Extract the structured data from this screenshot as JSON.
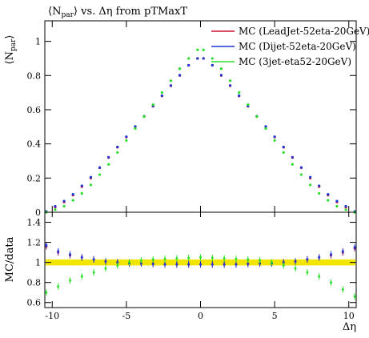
{
  "title": "⟨N_par⟩ vs. Δη from pTMaxT",
  "title_parts": {
    "pre": "⟨N",
    "sub": "par",
    "post": "⟩ vs. Δη from pTMaxT"
  },
  "y_axis_top": {
    "pre": "⟨N",
    "sub": "par",
    "post": "⟩"
  },
  "y_axis_bottom_label": "MC/data",
  "x_axis_label": "Δη",
  "colors": {
    "leadjet": "#d01030",
    "dijet": "#1f35d6",
    "threejet": "#2adf2a",
    "ratio_band": "#f2e600"
  },
  "chart_data": [
    {
      "type": "scatter",
      "panel": "main",
      "xlim": [
        -10.5,
        10.5
      ],
      "ylim": [
        0,
        1.12
      ],
      "x_ticks": [
        -10,
        -5,
        0,
        5,
        10
      ],
      "y_ticks": [
        0,
        0.2,
        0.4,
        0.6,
        0.8,
        1
      ],
      "y_tick_labels": [
        "0",
        "0.2",
        "0.4",
        "0.6",
        "0.8",
        "1"
      ],
      "grid": false,
      "legend_position": "top-right",
      "series": [
        {
          "name": "MC (LeadJet-52eta-20GeV)",
          "color_key": "leadjet",
          "x": [
            -10.4,
            -9.8,
            -9.2,
            -8.6,
            -8.0,
            -7.4,
            -6.8,
            -6.2,
            -5.6,
            -5.0,
            -4.4,
            -3.8,
            -3.2,
            -2.6,
            -2.0,
            -1.4,
            -0.8,
            -0.2,
            0.2,
            0.8,
            1.4,
            2.0,
            2.6,
            3.2,
            3.8,
            4.4,
            5.0,
            5.6,
            6.2,
            6.8,
            7.4,
            8.0,
            8.6,
            9.2,
            9.8,
            10.4
          ],
          "y": [
            0.0,
            0.03,
            0.06,
            0.1,
            0.15,
            0.2,
            0.26,
            0.32,
            0.38,
            0.44,
            0.5,
            0.56,
            0.62,
            0.68,
            0.74,
            0.8,
            0.86,
            0.9,
            0.9,
            0.86,
            0.8,
            0.74,
            0.68,
            0.62,
            0.56,
            0.5,
            0.44,
            0.38,
            0.32,
            0.26,
            0.2,
            0.15,
            0.1,
            0.06,
            0.03,
            0.0
          ]
        },
        {
          "name": "MC (Dijet-52eta-20GeV)",
          "color_key": "dijet",
          "x": [
            -10.4,
            -9.8,
            -9.2,
            -8.6,
            -8.0,
            -7.4,
            -6.8,
            -6.2,
            -5.6,
            -5.0,
            -4.4,
            -3.8,
            -3.2,
            -2.6,
            -2.0,
            -1.4,
            -0.8,
            -0.2,
            0.2,
            0.8,
            1.4,
            2.0,
            2.6,
            3.2,
            3.8,
            4.4,
            5.0,
            5.6,
            6.2,
            6.8,
            7.4,
            8.0,
            8.6,
            9.2,
            9.8,
            10.4
          ],
          "y": [
            0.005,
            0.035,
            0.065,
            0.105,
            0.155,
            0.205,
            0.262,
            0.322,
            0.382,
            0.442,
            0.502,
            0.562,
            0.622,
            0.682,
            0.742,
            0.802,
            0.86,
            0.9,
            0.9,
            0.86,
            0.802,
            0.742,
            0.682,
            0.622,
            0.562,
            0.502,
            0.442,
            0.382,
            0.322,
            0.262,
            0.205,
            0.155,
            0.105,
            0.065,
            0.035,
            0.005
          ]
        },
        {
          "name": "MC (3jet-eta52-20GeV)",
          "color_key": "threejet",
          "x": [
            -10.4,
            -9.8,
            -9.2,
            -8.6,
            -8.0,
            -7.4,
            -6.8,
            -6.2,
            -5.6,
            -5.0,
            -4.4,
            -3.8,
            -3.2,
            -2.6,
            -2.0,
            -1.4,
            -0.8,
            -0.2,
            0.2,
            0.8,
            1.4,
            2.0,
            2.6,
            3.2,
            3.8,
            4.4,
            5.0,
            5.6,
            6.2,
            6.8,
            7.4,
            8.0,
            8.6,
            9.2,
            9.8,
            10.4
          ],
          "y": [
            0.0,
            0.015,
            0.035,
            0.07,
            0.11,
            0.16,
            0.22,
            0.28,
            0.35,
            0.42,
            0.49,
            0.56,
            0.63,
            0.7,
            0.77,
            0.84,
            0.9,
            0.95,
            0.95,
            0.9,
            0.84,
            0.77,
            0.7,
            0.63,
            0.56,
            0.49,
            0.42,
            0.35,
            0.28,
            0.22,
            0.16,
            0.11,
            0.07,
            0.035,
            0.015,
            0.0
          ]
        }
      ],
      "x_label": "Δη",
      "y_label": "⟨N_par⟩"
    },
    {
      "type": "scatter",
      "panel": "ratio",
      "xlim": [
        -10.5,
        10.5
      ],
      "ylim": [
        0.55,
        1.5
      ],
      "x_ticks": [
        -10,
        -5,
        0,
        5,
        10
      ],
      "x_tick_labels": [
        "-10",
        "-5",
        "0",
        "5",
        "10"
      ],
      "y_ticks": [
        0.6,
        0.8,
        1,
        1.2,
        1.4
      ],
      "y_tick_labels": [
        "0.6",
        "0.8",
        "1",
        "1.2",
        "1.4"
      ],
      "band": {
        "center": 1.0,
        "half_width": 0.03,
        "color_key": "ratio_band"
      },
      "series": [
        {
          "name": "MC (LeadJet-52eta-20GeV)",
          "color_key": "leadjet",
          "x": [
            -10.4,
            -9.6,
            -8.8,
            -8.0,
            -7.2,
            -6.4,
            -5.6,
            -4.8,
            -4.0,
            -3.2,
            -2.4,
            -1.6,
            -0.8,
            0.0,
            0.8,
            1.6,
            2.4,
            3.2,
            4.0,
            4.8,
            5.6,
            6.4,
            7.2,
            8.0,
            8.8,
            9.6,
            10.4
          ],
          "y": [
            1.16,
            1.1,
            1.07,
            1.05,
            1.03,
            1.01,
            1.0,
            0.99,
            0.99,
            0.985,
            0.98,
            0.98,
            0.98,
            0.98,
            0.98,
            0.98,
            0.98,
            0.985,
            0.99,
            0.99,
            1.0,
            1.01,
            1.03,
            1.05,
            1.07,
            1.1,
            1.14
          ]
        },
        {
          "name": "MC (Dijet-52eta-20GeV)",
          "color_key": "dijet",
          "x": [
            -10.4,
            -9.6,
            -8.8,
            -8.0,
            -7.2,
            -6.4,
            -5.6,
            -4.8,
            -4.0,
            -3.2,
            -2.4,
            -1.6,
            -0.8,
            0.0,
            0.8,
            1.6,
            2.4,
            3.2,
            4.0,
            4.8,
            5.6,
            6.4,
            7.2,
            8.0,
            8.8,
            9.6,
            10.4
          ],
          "y": [
            1.17,
            1.11,
            1.08,
            1.05,
            1.03,
            1.01,
            1.0,
            0.99,
            0.99,
            0.985,
            0.98,
            0.98,
            0.98,
            0.98,
            0.98,
            0.98,
            0.98,
            0.985,
            0.99,
            0.99,
            1.0,
            1.01,
            1.03,
            1.05,
            1.08,
            1.11,
            1.15
          ]
        },
        {
          "name": "MC (3jet-eta52-20GeV)",
          "color_key": "threejet",
          "x": [
            -10.4,
            -9.6,
            -8.8,
            -8.0,
            -7.2,
            -6.4,
            -5.6,
            -4.8,
            -4.0,
            -3.2,
            -2.4,
            -1.6,
            -0.8,
            0.0,
            0.8,
            1.6,
            2.4,
            3.2,
            4.0,
            4.8,
            5.6,
            6.4,
            7.2,
            8.0,
            8.8,
            9.6,
            10.4
          ],
          "y": [
            0.7,
            0.76,
            0.82,
            0.86,
            0.9,
            0.94,
            0.97,
            1.0,
            1.02,
            1.03,
            1.035,
            1.04,
            1.045,
            1.05,
            1.045,
            1.04,
            1.035,
            1.03,
            1.02,
            1.0,
            0.97,
            0.94,
            0.9,
            0.86,
            0.8,
            0.73,
            0.66
          ]
        }
      ],
      "y_label": "MC/data"
    }
  ]
}
